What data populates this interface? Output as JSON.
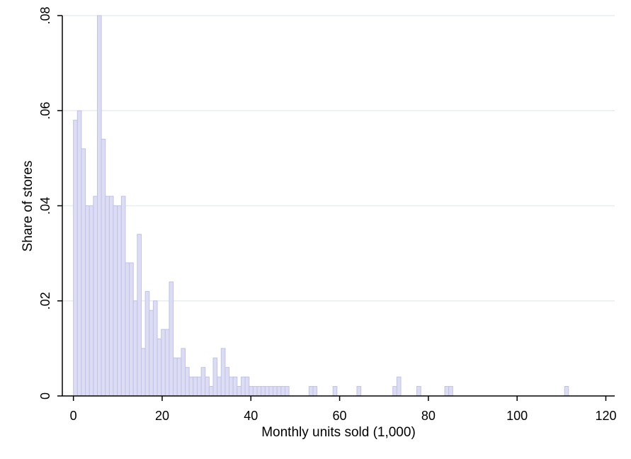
{
  "chart_data": {
    "type": "bar",
    "title": "",
    "xlabel": "Monthly units sold (1,000)",
    "ylabel": "Share of stores",
    "xlim": [
      -2.5,
      122
    ],
    "ylim": [
      0,
      0.08
    ],
    "xticks": [
      0,
      20,
      40,
      60,
      80,
      100,
      120
    ],
    "xtick_labels": [
      "0",
      "20",
      "40",
      "60",
      "80",
      "100",
      "120"
    ],
    "yticks": [
      0,
      0.02,
      0.04,
      0.06,
      0.08
    ],
    "ytick_labels": [
      "0",
      ".02",
      ".04",
      ".06",
      ".08"
    ],
    "grid": true,
    "bin_width": 0.9,
    "colors": {
      "bar_fill": "#dcdcf3",
      "bar_edge": "#c2c2ea",
      "grid": "#e6eef3",
      "axis": "#000000"
    },
    "bins_x": [
      0.45,
      1.35,
      2.25,
      3.15,
      4.05,
      4.95,
      5.85,
      6.75,
      7.65,
      8.55,
      9.45,
      10.35,
      11.25,
      12.15,
      13.05,
      13.95,
      14.85,
      15.75,
      16.65,
      17.55,
      18.45,
      19.35,
      20.25,
      21.15,
      22.05,
      22.95,
      23.85,
      24.75,
      25.65,
      26.55,
      27.45,
      28.35,
      29.25,
      30.15,
      31.05,
      31.95,
      32.85,
      33.75,
      34.65,
      35.55,
      36.45,
      37.35,
      38.25,
      39.15,
      40.05,
      40.95,
      41.85,
      42.75,
      43.65,
      44.55,
      45.45,
      46.35,
      47.25,
      48.15,
      53.55,
      54.45,
      58.95,
      64.35,
      72.45,
      73.35,
      77.85,
      84.15,
      85.05,
      111.15
    ],
    "values": [
      0.058,
      0.06,
      0.052,
      0.04,
      0.04,
      0.042,
      0.08,
      0.054,
      0.042,
      0.042,
      0.04,
      0.04,
      0.042,
      0.028,
      0.028,
      0.02,
      0.034,
      0.01,
      0.022,
      0.018,
      0.02,
      0.012,
      0.014,
      0.014,
      0.024,
      0.008,
      0.008,
      0.01,
      0.006,
      0.004,
      0.004,
      0.004,
      0.006,
      0.004,
      0.002,
      0.008,
      0.004,
      0.01,
      0.006,
      0.004,
      0.004,
      0.002,
      0.004,
      0.004,
      0.002,
      0.002,
      0.002,
      0.002,
      0.002,
      0.002,
      0.002,
      0.002,
      0.002,
      0.002,
      0.002,
      0.002,
      0.002,
      0.002,
      0.002,
      0.004,
      0.002,
      0.002,
      0.002,
      0.002
    ]
  }
}
